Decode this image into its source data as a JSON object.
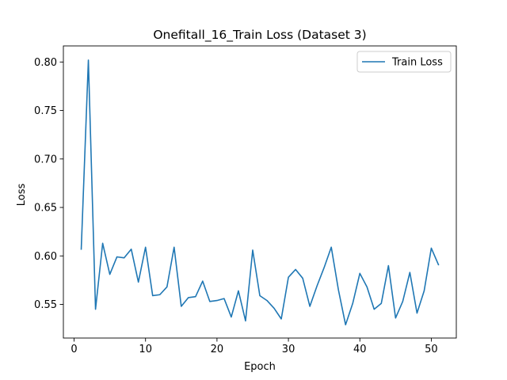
{
  "chart_data": {
    "type": "line",
    "title": "Onefitall_16_Train Loss  (Dataset 3)",
    "xlabel": "Epoch",
    "ylabel": "Loss",
    "xlim": [
      -1.5,
      53.5
    ],
    "ylim": [
      0.5153,
      0.8166
    ],
    "xticks": [
      "0",
      "10",
      "20",
      "30",
      "40",
      "50"
    ],
    "yticks": [
      "0.55",
      "0.60",
      "0.65",
      "0.70",
      "0.75",
      "0.80"
    ],
    "grid": false,
    "legend_position": "top-right",
    "series": [
      {
        "name": "Train Loss",
        "color": "#1f77b4",
        "x": [
          1,
          2,
          3,
          4,
          5,
          6,
          7,
          8,
          9,
          10,
          11,
          12,
          13,
          14,
          15,
          16,
          17,
          18,
          19,
          20,
          21,
          22,
          23,
          24,
          25,
          26,
          27,
          28,
          29,
          30,
          31,
          32,
          33,
          34,
          35,
          36,
          37,
          38,
          39,
          40,
          41,
          42,
          43,
          44,
          45,
          46,
          47,
          48,
          49,
          50,
          51
        ],
        "y": [
          0.607,
          0.802,
          0.545,
          0.613,
          0.581,
          0.599,
          0.598,
          0.607,
          0.573,
          0.609,
          0.559,
          0.56,
          0.568,
          0.609,
          0.548,
          0.557,
          0.558,
          0.574,
          0.553,
          0.554,
          0.556,
          0.537,
          0.564,
          0.533,
          0.606,
          0.559,
          0.554,
          0.546,
          0.535,
          0.578,
          0.586,
          0.577,
          0.548,
          0.569,
          0.588,
          0.609,
          0.565,
          0.529,
          0.551,
          0.582,
          0.568,
          0.545,
          0.551,
          0.59,
          0.536,
          0.553,
          0.583,
          0.541,
          0.564,
          0.608,
          0.591
        ]
      }
    ]
  }
}
